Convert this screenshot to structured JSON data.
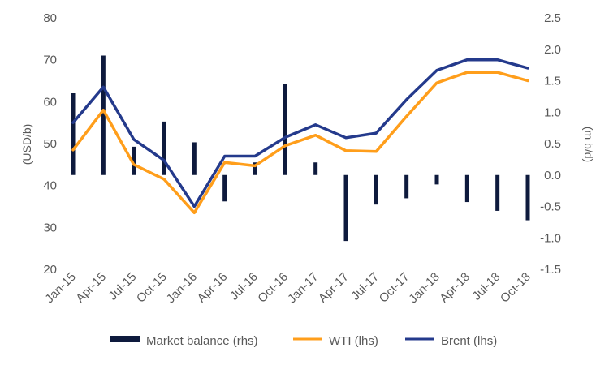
{
  "chart_data": {
    "type": "bar+line",
    "categories": [
      "Jan-15",
      "Apr-15",
      "Jul-15",
      "Oct-15",
      "Jan-16",
      "Apr-16",
      "Jul-16",
      "Oct-16",
      "Jan-17",
      "Apr-17",
      "Jul-17",
      "Oct-17",
      "Jan-18",
      "Apr-18",
      "Jul-18",
      "Oct-18"
    ],
    "series": [
      {
        "name": "Market balance (rhs)",
        "type": "bar",
        "axis": "right",
        "color": "#0e1a3d",
        "values": [
          1.3,
          1.9,
          0.45,
          0.85,
          0.52,
          -0.42,
          0.2,
          1.45,
          0.2,
          -1.05,
          -0.47,
          -0.37,
          -0.15,
          -0.43,
          -0.57,
          -0.72
        ]
      },
      {
        "name": "WTI (lhs)",
        "type": "line",
        "axis": "left",
        "color": "#ff9e1b",
        "values": [
          48.5,
          58,
          45,
          41.5,
          33.5,
          45.5,
          44.7,
          49.5,
          52,
          48.3,
          48.1,
          56.5,
          64.5,
          67,
          67,
          65
        ]
      },
      {
        "name": "Brent (lhs)",
        "type": "line",
        "axis": "left",
        "color": "#243a8c",
        "values": [
          55,
          63.5,
          51,
          46,
          35,
          47,
          47,
          51.5,
          54.5,
          51.4,
          52.5,
          60.5,
          67.5,
          70,
          70,
          68
        ]
      }
    ],
    "ylabel_left": "(USD/b)",
    "ylabel_right": "(m b/d)",
    "ylim_left": [
      20,
      80
    ],
    "ylim_right": [
      -1.5,
      2.5
    ],
    "yticks_left": [
      "80",
      "70",
      "60",
      "50",
      "40",
      "30",
      "20"
    ],
    "yticks_right": [
      "2.5",
      "2.0",
      "1.5",
      "1.0",
      "0.5",
      "0.0",
      "-0.5",
      "-1.0",
      "-1.5"
    ],
    "legend_position": "bottom",
    "grid": false
  },
  "legend": {
    "market": "Market balance (rhs)",
    "wti": "WTI (lhs)",
    "brent": "Brent (lhs)"
  }
}
